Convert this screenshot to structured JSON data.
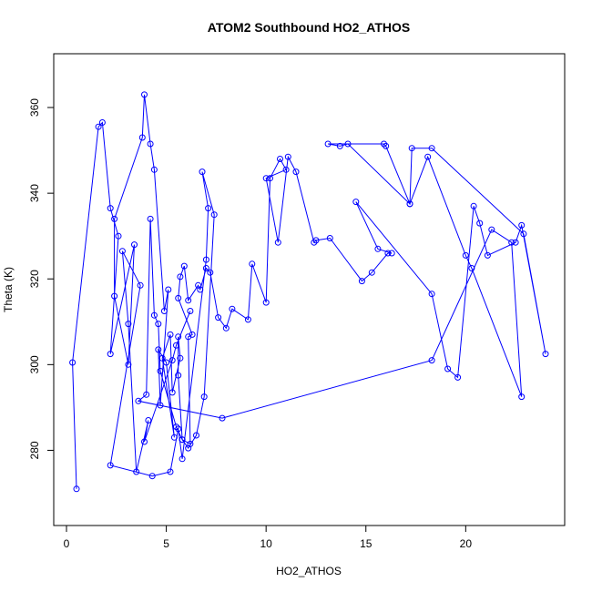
{
  "chart_data": {
    "type": "line",
    "title": "ATOM2 Southbound HO2_ATHOS",
    "xlabel": "HO2_ATHOS",
    "ylabel": "Theta (K)",
    "xlim": [
      0,
      24
    ],
    "ylim": [
      265,
      370
    ],
    "xticks": [
      0,
      5,
      10,
      15,
      20
    ],
    "yticks": [
      280,
      300,
      320,
      340,
      360
    ],
    "grid": false,
    "legend": "none",
    "marker": "open-circle",
    "colors": {
      "series": "#0000ff",
      "axis": "#000000",
      "background": "#ffffff"
    },
    "series": [
      {
        "x": [
          0.5,
          0.3,
          1.6,
          1.8,
          2.2,
          2.6,
          2.2,
          3.4,
          3.1,
          2.4,
          2.4,
          3.8,
          3.9,
          4.2,
          4.4,
          4.9,
          5.1,
          4.7,
          4.6,
          5.0,
          5.4,
          4.8,
          5.2,
          5.3,
          5.7,
          5.6,
          5.6,
          5.8,
          6.2,
          6.1,
          6.3,
          5.6,
          5.7,
          5.9,
          6.1,
          6.6,
          6.7,
          7.0,
          7.2,
          7.6,
          8.0,
          8.3,
          9.1,
          9.3,
          10.0,
          10.2,
          10.7,
          11.0,
          10.0,
          10.6,
          11.1,
          11.5,
          12.4,
          12.5,
          13.2,
          14.8,
          15.3,
          16.1,
          16.3,
          15.6,
          14.5,
          18.3,
          19.1,
          19.6,
          20.4,
          20.7,
          21.1,
          22.5,
          22.8,
          24.0,
          22.9,
          18.3,
          17.3,
          17.2,
          14.1,
          13.7,
          13.1,
          15.9,
          16.0,
          17.2,
          18.1,
          20.0,
          20.3,
          22.8,
          22.3,
          21.3,
          18.3,
          7.8,
          3.6,
          4.0,
          4.2,
          4.4,
          4.6,
          4.7,
          5.5,
          5.8,
          6.1,
          6.5,
          6.9,
          7.4,
          6.8,
          7.1,
          7.0,
          5.8,
          5.6,
          5.2,
          4.3,
          2.2,
          3.7,
          2.8,
          3.1,
          3.5,
          4.1,
          3.9,
          5.3,
          5.5,
          6.2
        ],
        "y": [
          271,
          300.5,
          355.5,
          356.5,
          336.5,
          330,
          302.5,
          328,
          300,
          316,
          334,
          353,
          363,
          351.5,
          345.5,
          312.5,
          317.5,
          290.5,
          303.5,
          300.5,
          283,
          301.5,
          307,
          293.5,
          301.5,
          306.5,
          297.5,
          282.5,
          281.5,
          306.5,
          307,
          315.5,
          320.5,
          323,
          315,
          318.5,
          317.5,
          322.5,
          321.5,
          311,
          308.5,
          313,
          310.5,
          323.5,
          314.5,
          343.5,
          348,
          345.5,
          343.5,
          328.5,
          348.5,
          345,
          328.5,
          329,
          329.5,
          319.5,
          321.5,
          326,
          326,
          327,
          338,
          316.5,
          299,
          297,
          337,
          333,
          325.5,
          328.5,
          332.5,
          302.5,
          330.5,
          350.5,
          350.5,
          337.5,
          351.5,
          351,
          351.5,
          351.5,
          351,
          337.5,
          348.5,
          325.5,
          322.5,
          292.5,
          328.5,
          331.5,
          301,
          287.5,
          291.5,
          293,
          334,
          311.5,
          309.5,
          298.5,
          285.5,
          282.5,
          280.5,
          283.5,
          292.5,
          335,
          345,
          336.5,
          324.5,
          278,
          285,
          275,
          274,
          276.5,
          318.5,
          326.5,
          309.5,
          275,
          287,
          282,
          301,
          304.5,
          312.5
        ]
      }
    ]
  }
}
